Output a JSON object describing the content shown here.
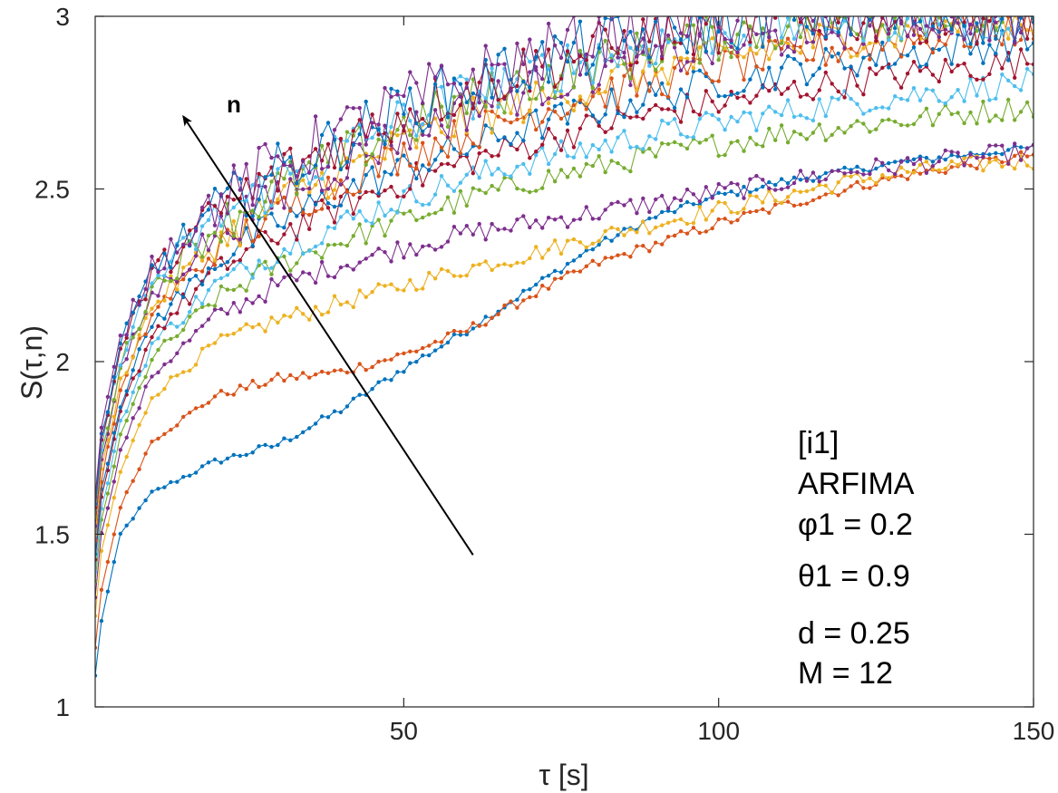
{
  "chart_data": {
    "type": "line",
    "title": "",
    "xlabel": "τ [s]",
    "ylabel": "S(τ,n)",
    "xlim": [
      1,
      150
    ],
    "ylim": [
      1,
      3
    ],
    "xticks": [
      50,
      100,
      150
    ],
    "yticks": [
      1,
      1.5,
      2,
      2.5,
      3
    ],
    "xtick_labels": [
      "50",
      "100",
      "150"
    ],
    "ytick_labels": [
      "1",
      "1.5",
      "2",
      "2.5",
      "3"
    ],
    "grid": false,
    "legend": "none",
    "marker": "dot",
    "x_step": 1,
    "annotation_lines": [
      "[i1]",
      "ARFIMA",
      "φ1 = 0.2",
      "θ1 = 0.9",
      "d = 0.25",
      "M = 12"
    ],
    "arrow_label": "n",
    "arrow": {
      "from": [
        61,
        1.44
      ],
      "to": [
        15,
        2.71
      ]
    },
    "series": [
      {
        "color": "#0072BD",
        "curve": [
          [
            1,
            1.09
          ],
          [
            2,
            1.25
          ],
          [
            5,
            1.5
          ],
          [
            10,
            1.62
          ],
          [
            20,
            1.71
          ],
          [
            30,
            1.76
          ],
          [
            40,
            1.86
          ],
          [
            50,
            1.98
          ],
          [
            60,
            2.09
          ],
          [
            70,
            2.21
          ],
          [
            80,
            2.33
          ],
          [
            90,
            2.42
          ],
          [
            100,
            2.48
          ],
          [
            110,
            2.52
          ],
          [
            120,
            2.55
          ],
          [
            130,
            2.58
          ],
          [
            140,
            2.6
          ],
          [
            150,
            2.62
          ]
        ],
        "noise": 0.012
      },
      {
        "color": "#D95319",
        "curve": [
          [
            1,
            1.17
          ],
          [
            2,
            1.34
          ],
          [
            5,
            1.58
          ],
          [
            10,
            1.77
          ],
          [
            20,
            1.9
          ],
          [
            30,
            1.95
          ],
          [
            40,
            1.97
          ],
          [
            50,
            2.02
          ],
          [
            60,
            2.09
          ],
          [
            70,
            2.19
          ],
          [
            80,
            2.28
          ],
          [
            90,
            2.34
          ],
          [
            100,
            2.4
          ],
          [
            110,
            2.45
          ],
          [
            120,
            2.5
          ],
          [
            130,
            2.54
          ],
          [
            140,
            2.57
          ],
          [
            150,
            2.6
          ]
        ],
        "noise": 0.015
      },
      {
        "color": "#EDB120",
        "curve": [
          [
            1,
            1.26
          ],
          [
            2,
            1.45
          ],
          [
            5,
            1.68
          ],
          [
            10,
            1.9
          ],
          [
            20,
            2.05
          ],
          [
            30,
            2.12
          ],
          [
            40,
            2.17
          ],
          [
            50,
            2.22
          ],
          [
            60,
            2.27
          ],
          [
            70,
            2.31
          ],
          [
            80,
            2.36
          ],
          [
            90,
            2.4
          ],
          [
            100,
            2.44
          ],
          [
            110,
            2.48
          ],
          [
            120,
            2.52
          ],
          [
            130,
            2.55
          ],
          [
            140,
            2.57
          ],
          [
            150,
            2.58
          ]
        ],
        "noise": 0.025
      },
      {
        "color": "#7E2F8E",
        "curve": [
          [
            1,
            1.32
          ],
          [
            2,
            1.5
          ],
          [
            5,
            1.74
          ],
          [
            10,
            1.96
          ],
          [
            20,
            2.13
          ],
          [
            30,
            2.22
          ],
          [
            40,
            2.28
          ],
          [
            50,
            2.33
          ],
          [
            60,
            2.37
          ],
          [
            70,
            2.4
          ],
          [
            80,
            2.43
          ],
          [
            90,
            2.46
          ],
          [
            100,
            2.49
          ],
          [
            110,
            2.52
          ],
          [
            120,
            2.55
          ],
          [
            130,
            2.57
          ],
          [
            140,
            2.59
          ],
          [
            150,
            2.61
          ]
        ],
        "noise": 0.03
      },
      {
        "color": "#77AC30",
        "curve": [
          [
            1,
            1.36
          ],
          [
            2,
            1.54
          ],
          [
            5,
            1.78
          ],
          [
            10,
            2.01
          ],
          [
            20,
            2.18
          ],
          [
            30,
            2.28
          ],
          [
            40,
            2.35
          ],
          [
            50,
            2.41
          ],
          [
            60,
            2.47
          ],
          [
            70,
            2.52
          ],
          [
            80,
            2.56
          ],
          [
            90,
            2.6
          ],
          [
            100,
            2.63
          ],
          [
            110,
            2.66
          ],
          [
            120,
            2.68
          ],
          [
            130,
            2.7
          ],
          [
            140,
            2.72
          ],
          [
            150,
            2.74
          ]
        ],
        "noise": 0.035
      },
      {
        "color": "#4DBEEE",
        "curve": [
          [
            1,
            1.39
          ],
          [
            2,
            1.57
          ],
          [
            5,
            1.82
          ],
          [
            10,
            2.05
          ],
          [
            20,
            2.22
          ],
          [
            30,
            2.32
          ],
          [
            40,
            2.4
          ],
          [
            50,
            2.47
          ],
          [
            60,
            2.53
          ],
          [
            70,
            2.58
          ],
          [
            80,
            2.62
          ],
          [
            90,
            2.66
          ],
          [
            100,
            2.69
          ],
          [
            110,
            2.72
          ],
          [
            120,
            2.75
          ],
          [
            130,
            2.77
          ],
          [
            140,
            2.79
          ],
          [
            150,
            2.81
          ]
        ],
        "noise": 0.04
      },
      {
        "color": "#A2142F",
        "curve": [
          [
            1,
            1.42
          ],
          [
            2,
            1.6
          ],
          [
            5,
            1.85
          ],
          [
            10,
            2.08
          ],
          [
            20,
            2.26
          ],
          [
            30,
            2.37
          ],
          [
            40,
            2.45
          ],
          [
            50,
            2.52
          ],
          [
            60,
            2.58
          ],
          [
            70,
            2.63
          ],
          [
            80,
            2.68
          ],
          [
            90,
            2.72
          ],
          [
            100,
            2.75
          ],
          [
            110,
            2.78
          ],
          [
            120,
            2.81
          ],
          [
            130,
            2.83
          ],
          [
            140,
            2.85
          ],
          [
            150,
            2.87
          ]
        ],
        "noise": 0.045
      },
      {
        "color": "#0072BD",
        "curve": [
          [
            1,
            1.45
          ],
          [
            2,
            1.63
          ],
          [
            5,
            1.88
          ],
          [
            10,
            2.11
          ],
          [
            20,
            2.29
          ],
          [
            30,
            2.4
          ],
          [
            40,
            2.49
          ],
          [
            50,
            2.56
          ],
          [
            60,
            2.62
          ],
          [
            70,
            2.68
          ],
          [
            80,
            2.73
          ],
          [
            90,
            2.77
          ],
          [
            100,
            2.81
          ],
          [
            110,
            2.84
          ],
          [
            120,
            2.87
          ],
          [
            130,
            2.89
          ],
          [
            140,
            2.91
          ],
          [
            150,
            2.93
          ]
        ],
        "noise": 0.05
      },
      {
        "color": "#D95319",
        "curve": [
          [
            1,
            1.48
          ],
          [
            2,
            1.66
          ],
          [
            5,
            1.91
          ],
          [
            10,
            2.14
          ],
          [
            20,
            2.32
          ],
          [
            30,
            2.43
          ],
          [
            40,
            2.52
          ],
          [
            50,
            2.6
          ],
          [
            60,
            2.66
          ],
          [
            70,
            2.72
          ],
          [
            80,
            2.77
          ],
          [
            90,
            2.81
          ],
          [
            100,
            2.85
          ],
          [
            110,
            2.88
          ],
          [
            120,
            2.91
          ],
          [
            130,
            2.93
          ],
          [
            140,
            2.95
          ],
          [
            150,
            2.97
          ]
        ],
        "noise": 0.055
      },
      {
        "color": "#EDB120",
        "curve": [
          [
            1,
            1.5
          ],
          [
            2,
            1.68
          ],
          [
            5,
            1.94
          ],
          [
            10,
            2.16
          ],
          [
            20,
            2.34
          ],
          [
            30,
            2.46
          ],
          [
            40,
            2.55
          ],
          [
            50,
            2.63
          ],
          [
            60,
            2.7
          ],
          [
            70,
            2.75
          ],
          [
            80,
            2.8
          ],
          [
            90,
            2.85
          ],
          [
            100,
            2.88
          ],
          [
            110,
            2.91
          ],
          [
            120,
            2.94
          ],
          [
            130,
            2.96
          ],
          [
            140,
            2.98
          ],
          [
            150,
            2.99
          ]
        ],
        "noise": 0.06
      },
      {
        "color": "#7E2F8E",
        "curve": [
          [
            1,
            1.53
          ],
          [
            2,
            1.71
          ],
          [
            5,
            1.97
          ],
          [
            10,
            2.19
          ],
          [
            20,
            2.37
          ],
          [
            30,
            2.48
          ],
          [
            40,
            2.57
          ],
          [
            50,
            2.66
          ],
          [
            60,
            2.73
          ],
          [
            70,
            2.79
          ],
          [
            80,
            2.84
          ],
          [
            90,
            2.88
          ],
          [
            100,
            2.91
          ],
          [
            110,
            2.94
          ],
          [
            120,
            2.97
          ],
          [
            130,
            2.99
          ],
          [
            140,
            3.0
          ],
          [
            150,
            3.0
          ]
        ],
        "noise": 0.065
      },
      {
        "color": "#77AC30",
        "curve": [
          [
            1,
            1.55
          ],
          [
            2,
            1.73
          ],
          [
            5,
            1.99
          ],
          [
            10,
            2.21
          ],
          [
            20,
            2.39
          ],
          [
            30,
            2.5
          ],
          [
            40,
            2.59
          ],
          [
            50,
            2.68
          ],
          [
            60,
            2.75
          ],
          [
            70,
            2.81
          ],
          [
            80,
            2.86
          ],
          [
            90,
            2.9
          ],
          [
            100,
            2.94
          ],
          [
            110,
            2.97
          ],
          [
            120,
            2.99
          ],
          [
            130,
            3.0
          ],
          [
            140,
            3.0
          ],
          [
            150,
            3.0
          ]
        ],
        "noise": 0.07
      },
      {
        "color": "#4DBEEE",
        "curve": [
          [
            1,
            1.57
          ],
          [
            2,
            1.75
          ],
          [
            5,
            2.01
          ],
          [
            10,
            2.23
          ],
          [
            20,
            2.41
          ],
          [
            30,
            2.52
          ],
          [
            40,
            2.61
          ],
          [
            50,
            2.7
          ],
          [
            60,
            2.77
          ],
          [
            70,
            2.83
          ],
          [
            80,
            2.88
          ],
          [
            90,
            2.92
          ],
          [
            100,
            2.96
          ],
          [
            110,
            2.98
          ],
          [
            120,
            3.0
          ],
          [
            130,
            3.0
          ],
          [
            140,
            3.0
          ],
          [
            150,
            3.0
          ]
        ],
        "noise": 0.075
      },
      {
        "color": "#A2142F",
        "curve": [
          [
            1,
            1.58
          ],
          [
            2,
            1.77
          ],
          [
            5,
            2.03
          ],
          [
            10,
            2.25
          ],
          [
            20,
            2.43
          ],
          [
            30,
            2.54
          ],
          [
            40,
            2.63
          ],
          [
            50,
            2.72
          ],
          [
            60,
            2.79
          ],
          [
            70,
            2.85
          ],
          [
            80,
            2.9
          ],
          [
            90,
            2.94
          ],
          [
            100,
            2.97
          ],
          [
            110,
            2.99
          ],
          [
            120,
            3.0
          ],
          [
            130,
            3.0
          ],
          [
            140,
            3.0
          ],
          [
            150,
            3.0
          ]
        ],
        "noise": 0.08
      },
      {
        "color": "#0072BD",
        "curve": [
          [
            1,
            1.59
          ],
          [
            2,
            1.78
          ],
          [
            5,
            2.04
          ],
          [
            10,
            2.26
          ],
          [
            20,
            2.44
          ],
          [
            30,
            2.55
          ],
          [
            40,
            2.64
          ],
          [
            50,
            2.73
          ],
          [
            60,
            2.8
          ],
          [
            70,
            2.86
          ],
          [
            80,
            2.91
          ],
          [
            90,
            2.95
          ],
          [
            100,
            2.98
          ],
          [
            110,
            3.0
          ],
          [
            120,
            3.0
          ],
          [
            130,
            3.0
          ],
          [
            140,
            3.0
          ],
          [
            150,
            3.0
          ]
        ],
        "noise": 0.085
      },
      {
        "color": "#7E2F8E",
        "curve": [
          [
            1,
            1.6
          ],
          [
            2,
            1.8
          ],
          [
            5,
            2.06
          ],
          [
            10,
            2.28
          ],
          [
            20,
            2.46
          ],
          [
            30,
            2.57
          ],
          [
            40,
            2.66
          ],
          [
            50,
            2.75
          ],
          [
            60,
            2.82
          ],
          [
            70,
            2.88
          ],
          [
            80,
            2.93
          ],
          [
            90,
            2.97
          ],
          [
            100,
            3.0
          ],
          [
            110,
            3.0
          ],
          [
            120,
            3.0
          ],
          [
            130,
            3.0
          ],
          [
            140,
            3.0
          ],
          [
            150,
            3.0
          ]
        ],
        "noise": 0.09
      }
    ]
  }
}
